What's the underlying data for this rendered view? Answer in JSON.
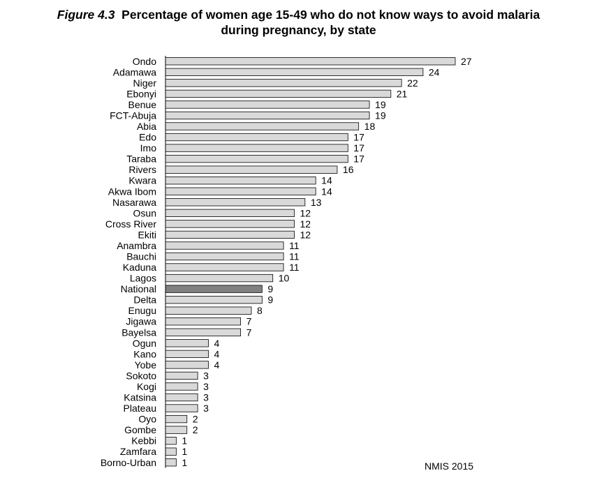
{
  "title": {
    "figure_label": "Figure 4.3",
    "line1": "Percentage of women age 15-49 who do not know ways to avoid malaria",
    "line2": "during pregnancy, by state"
  },
  "source": "NMIS 2015",
  "colors": {
    "bar_fill": "#d9d9d9",
    "highlight_fill": "#808080",
    "bar_stroke": "#000000"
  },
  "chart_data": {
    "type": "bar",
    "orientation": "horizontal",
    "title": "Percentage of women age 15-49 who do not know ways to avoid malaria during pregnancy, by state",
    "xlabel": "",
    "ylabel": "",
    "xlim": [
      0,
      27
    ],
    "grid": false,
    "highlight": "National",
    "categories": [
      "Ondo",
      "Adamawa",
      "Niger",
      "Ebonyi",
      "Benue",
      "FCT-Abuja",
      "Abia",
      "Edo",
      "Imo",
      "Taraba",
      "Rivers",
      "Kwara",
      "Akwa Ibom",
      "Nasarawa",
      "Osun",
      "Cross River",
      "Ekiti",
      "Anambra",
      "Bauchi",
      "Kaduna",
      "Lagos",
      "National",
      "Delta",
      "Enugu",
      "Jigawa",
      "Bayelsa",
      "Ogun",
      "Kano",
      "Yobe",
      "Sokoto",
      "Kogi",
      "Katsina",
      "Plateau",
      "Oyo",
      "Gombe",
      "Kebbi",
      "Zamfara",
      "Borno-Urban"
    ],
    "values": [
      27,
      24,
      22,
      21,
      19,
      19,
      18,
      17,
      17,
      17,
      16,
      14,
      14,
      13,
      12,
      12,
      12,
      11,
      11,
      11,
      10,
      9,
      9,
      8,
      7,
      7,
      4,
      4,
      4,
      3,
      3,
      3,
      3,
      2,
      2,
      1,
      1,
      1
    ]
  }
}
